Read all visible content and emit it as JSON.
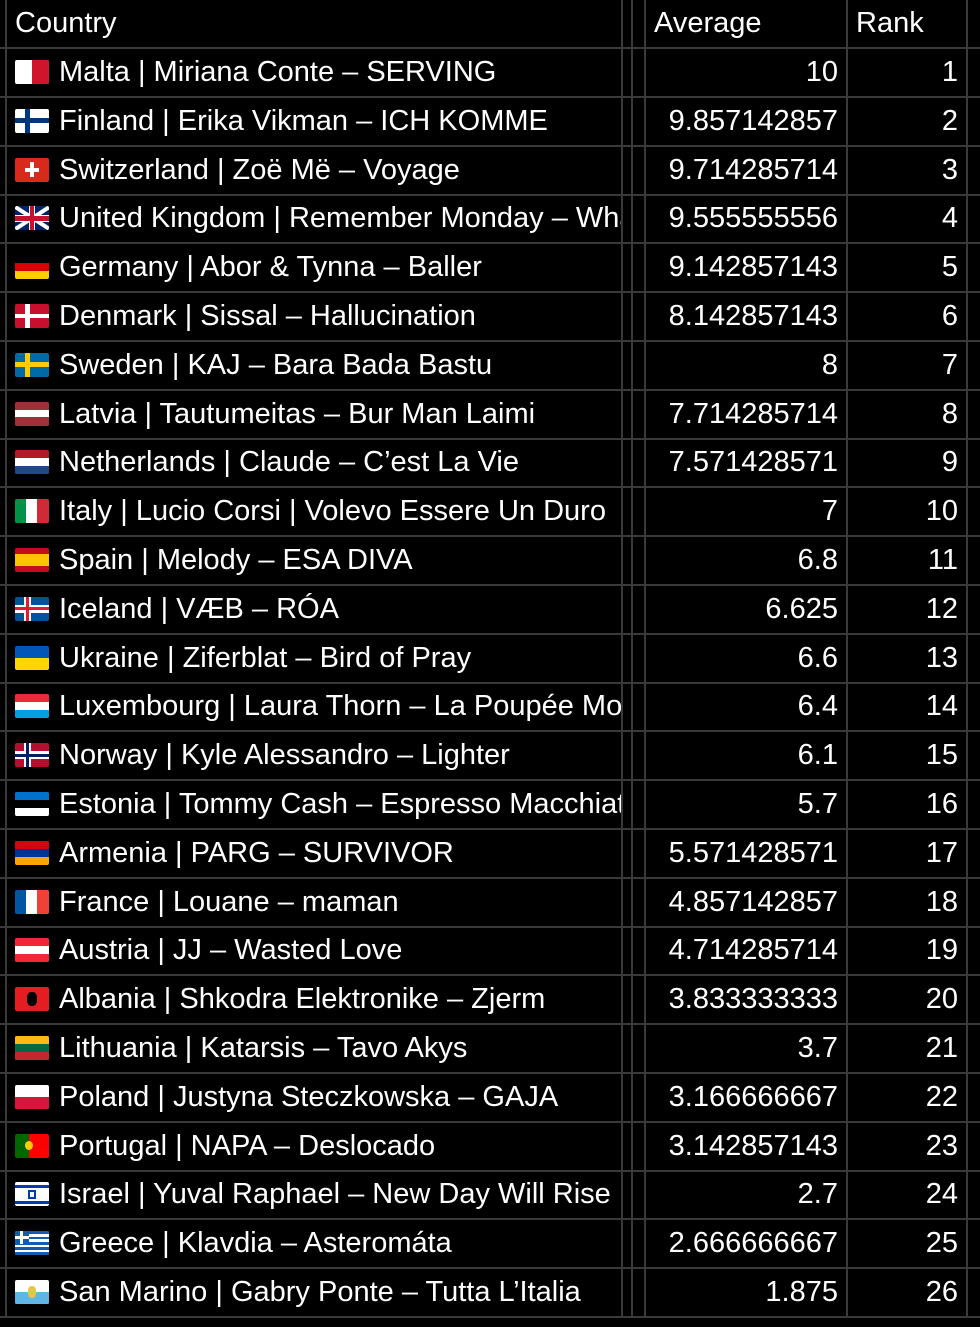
{
  "header": {
    "country": "Country",
    "average": "Average",
    "rank": "Rank"
  },
  "rows": [
    {
      "country": "Malta | Miriana Conte – SERVING",
      "average": "10",
      "rank": "1",
      "flag": "malta-flag-icon",
      "colors": [
        "#ffffff",
        "#cf142b"
      ],
      "layout": "v2"
    },
    {
      "country": "Finland | Erika Vikman – ICH KOMME",
      "average": "9.857142857",
      "rank": "2",
      "flag": "finland-flag-icon",
      "colors": [
        "#ffffff",
        "#003580"
      ],
      "layout": "nordic"
    },
    {
      "country": "Switzerland | Zoë Më – Voyage",
      "average": "9.714285714",
      "rank": "3",
      "flag": "switzerland-flag-icon",
      "colors": [
        "#da291c",
        "#ffffff"
      ],
      "layout": "swiss"
    },
    {
      "country": "United Kingdom | Remember Monday – What The Hell Just Happened?",
      "average": "9.555555556",
      "rank": "4",
      "flag": "uk-flag-icon",
      "colors": [
        "#012169",
        "#ffffff",
        "#c8102e"
      ],
      "layout": "uk"
    },
    {
      "country": "Germany | Abor & Tynna – Baller",
      "average": "9.142857143",
      "rank": "5",
      "flag": "germany-flag-icon",
      "colors": [
        "#000000",
        "#dd0000",
        "#ffce00"
      ],
      "layout": "h3"
    },
    {
      "country": "Denmark | Sissal – Hallucination",
      "average": "8.142857143",
      "rank": "6",
      "flag": "denmark-flag-icon",
      "colors": [
        "#c8102e",
        "#ffffff"
      ],
      "layout": "nordic"
    },
    {
      "country": "Sweden | KAJ – Bara Bada Bastu",
      "average": "8",
      "rank": "7",
      "flag": "sweden-flag-icon",
      "colors": [
        "#006aa7",
        "#fecc00"
      ],
      "layout": "nordic"
    },
    {
      "country": "Latvia | Tautumeitas – Bur Man Laimi",
      "average": "7.714285714",
      "rank": "8",
      "flag": "latvia-flag-icon",
      "colors": [
        "#9e3039",
        "#ffffff",
        "#9e3039"
      ],
      "layout": "h3"
    },
    {
      "country": "Netherlands | Claude – C’est La Vie",
      "average": "7.571428571",
      "rank": "9",
      "flag": "netherlands-flag-icon",
      "colors": [
        "#ae1c28",
        "#ffffff",
        "#21468b"
      ],
      "layout": "h3"
    },
    {
      "country": "Italy | Lucio Corsi | Volevo Essere Un Duro",
      "average": "7",
      "rank": "10",
      "flag": "italy-flag-icon",
      "colors": [
        "#009246",
        "#ffffff",
        "#ce2b37"
      ],
      "layout": "v3"
    },
    {
      "country": "Spain | Melody – ESA DIVA",
      "average": "6.8",
      "rank": "11",
      "flag": "spain-flag-icon",
      "colors": [
        "#c60b1e",
        "#ffc400",
        "#c60b1e"
      ],
      "layout": "spain"
    },
    {
      "country": "Iceland | VÆB – RÓA",
      "average": "6.625",
      "rank": "12",
      "flag": "iceland-flag-icon",
      "colors": [
        "#02529c",
        "#ffffff",
        "#dc1e35"
      ],
      "layout": "nordic2"
    },
    {
      "country": "Ukraine | Ziferblat – Bird of Pray",
      "average": "6.6",
      "rank": "13",
      "flag": "ukraine-flag-icon",
      "colors": [
        "#0057b7",
        "#ffd700"
      ],
      "layout": "h2"
    },
    {
      "country": "Luxembourg | Laura Thorn – La Poupée Monte Le Son",
      "average": "6.4",
      "rank": "14",
      "flag": "luxembourg-flag-icon",
      "colors": [
        "#ed2939",
        "#ffffff",
        "#00a1de"
      ],
      "layout": "h3"
    },
    {
      "country": "Norway | Kyle Alessandro – Lighter",
      "average": "6.1",
      "rank": "15",
      "flag": "norway-flag-icon",
      "colors": [
        "#ba0c2f",
        "#ffffff",
        "#00205b"
      ],
      "layout": "nordic2"
    },
    {
      "country": "Estonia | Tommy Cash – Espresso Macchiato",
      "average": "5.7",
      "rank": "16",
      "flag": "estonia-flag-icon",
      "colors": [
        "#0072ce",
        "#000000",
        "#ffffff"
      ],
      "layout": "h3"
    },
    {
      "country": "Armenia | PARG – SURVIVOR",
      "average": "5.571428571",
      "rank": "17",
      "flag": "armenia-flag-icon",
      "colors": [
        "#d90012",
        "#0033a0",
        "#f2a800"
      ],
      "layout": "h3"
    },
    {
      "country": "France | Louane – maman",
      "average": "4.857142857",
      "rank": "18",
      "flag": "france-flag-icon",
      "colors": [
        "#0055a4",
        "#ffffff",
        "#ef4135"
      ],
      "layout": "v3"
    },
    {
      "country": "Austria | JJ – Wasted Love",
      "average": "4.714285714",
      "rank": "19",
      "flag": "austria-flag-icon",
      "colors": [
        "#ed2939",
        "#ffffff",
        "#ed2939"
      ],
      "layout": "h3"
    },
    {
      "country": "Albania | Shkodra Elektronike – Zjerm",
      "average": "3.833333333",
      "rank": "20",
      "flag": "albania-flag-icon",
      "colors": [
        "#e41e20",
        "#000000"
      ],
      "layout": "albania"
    },
    {
      "country": "Lithuania | Katarsis – Tavo Akys",
      "average": "3.7",
      "rank": "21",
      "flag": "lithuania-flag-icon",
      "colors": [
        "#fdb913",
        "#006a44",
        "#c1272d"
      ],
      "layout": "h3"
    },
    {
      "country": "Poland | Justyna Steczkowska – GAJA",
      "average": "3.166666667",
      "rank": "22",
      "flag": "poland-flag-icon",
      "colors": [
        "#ffffff",
        "#dc143c"
      ],
      "layout": "h2"
    },
    {
      "country": "Portugal | NAPA – Deslocado",
      "average": "3.142857143",
      "rank": "23",
      "flag": "portugal-flag-icon",
      "colors": [
        "#006600",
        "#ff0000",
        "#ffcc00"
      ],
      "layout": "portugal"
    },
    {
      "country": "Israel | Yuval Raphael – New Day Will Rise",
      "average": "2.7",
      "rank": "24",
      "flag": "israel-flag-icon",
      "colors": [
        "#ffffff",
        "#0038b8"
      ],
      "layout": "israel"
    },
    {
      "country": "Greece | Klavdia – Asteromáta",
      "average": "2.666666667",
      "rank": "25",
      "flag": "greece-flag-icon",
      "colors": [
        "#0d5eaf",
        "#ffffff"
      ],
      "layout": "greece"
    },
    {
      "country": "San Marino | Gabry Ponte – Tutta L’Italia",
      "average": "1.875",
      "rank": "26",
      "flag": "san-marino-flag-icon",
      "colors": [
        "#ffffff",
        "#5eb6e4",
        "#e8c547"
      ],
      "layout": "sanmarino"
    }
  ]
}
